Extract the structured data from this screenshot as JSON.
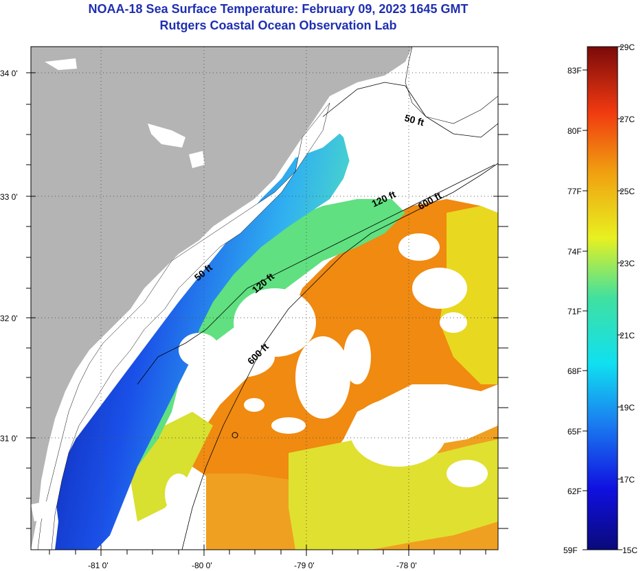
{
  "header": {
    "title": "NOAA-18 Sea Surface Temperature:  February 09, 2023 1645 GMT",
    "subtitle": "Rutgers Coastal Ocean Observation Lab"
  },
  "axes": {
    "lat_labels": [
      "34 0'",
      "33 0'",
      "32 0'",
      "31 0'"
    ],
    "lon_labels": [
      "-81 0'",
      "-80 0'",
      "-79 0'",
      "-78 0'"
    ]
  },
  "contours": {
    "labels": [
      "50 ft",
      "120 ft",
      "600 ft",
      "50 ft",
      "120 ft",
      "600 ft"
    ]
  },
  "colorbar": {
    "fahrenheit": [
      "83F",
      "80F",
      "77F",
      "74F",
      "71F",
      "68F",
      "65F",
      "62F",
      "59F"
    ],
    "celsius": [
      "29C",
      "27C",
      "25C",
      "23C",
      "21C",
      "19C",
      "17C",
      "15C"
    ]
  },
  "colors": {
    "land": "#b4b4b4",
    "title": "#1f2fb0",
    "cold": "#0a1a9a",
    "warm": "#f08a10"
  }
}
